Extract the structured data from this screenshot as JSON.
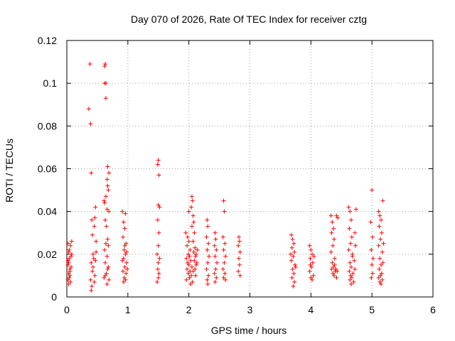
{
  "chart_data": {
    "type": "scatter",
    "title": "Day 070 of 2026, Rate Of TEC Index for receiver cztg",
    "xlabel": "GPS time / hours",
    "ylabel": "ROTI / TECUs",
    "xlim": [
      0,
      6
    ],
    "ylim": [
      0,
      0.12
    ],
    "xticks": [
      0,
      1,
      2,
      3,
      4,
      5,
      6
    ],
    "xtick_labels": [
      "0",
      "1",
      "2",
      "3",
      "4",
      "5",
      "6"
    ],
    "yticks": [
      0,
      0.02,
      0.04,
      0.06,
      0.08,
      0.1,
      0.12
    ],
    "ytick_labels": [
      "0",
      "0.02",
      "0.04",
      "0.06",
      "0.08",
      "0.1",
      "0.12"
    ],
    "grid": true,
    "marker": "+",
    "color": "#ff0000",
    "series": [
      {
        "name": "ROTI",
        "points": [
          [
            0.02,
            0.025
          ],
          [
            0.03,
            0.021
          ],
          [
            0.04,
            0.018
          ],
          [
            0.02,
            0.015
          ],
          [
            0.05,
            0.013
          ],
          [
            0.03,
            0.011
          ],
          [
            0.04,
            0.009
          ],
          [
            0.02,
            0.008
          ],
          [
            0.06,
            0.007
          ],
          [
            0.05,
            0.012
          ],
          [
            0.03,
            0.016
          ],
          [
            0.07,
            0.019
          ],
          [
            0.04,
            0.022
          ],
          [
            0.06,
            0.024
          ],
          [
            0.08,
            0.026
          ],
          [
            0.05,
            0.01
          ],
          [
            0.07,
            0.014
          ],
          [
            0.02,
            0.017
          ],
          [
            0.08,
            0.02
          ],
          [
            0.03,
            0.006
          ],
          [
            0.38,
            0.109
          ],
          [
            0.36,
            0.088
          ],
          [
            0.39,
            0.081
          ],
          [
            0.4,
            0.058
          ],
          [
            0.41,
            0.036
          ],
          [
            0.42,
            0.029
          ],
          [
            0.43,
            0.02
          ],
          [
            0.4,
            0.016
          ],
          [
            0.42,
            0.012
          ],
          [
            0.39,
            0.008
          ],
          [
            0.41,
            0.005
          ],
          [
            0.4,
            0.003
          ],
          [
            0.44,
            0.018
          ],
          [
            0.45,
            0.033
          ],
          [
            0.46,
            0.037
          ],
          [
            0.47,
            0.042
          ],
          [
            0.48,
            0.026
          ],
          [
            0.43,
            0.014
          ],
          [
            0.46,
            0.01
          ],
          [
            0.48,
            0.021
          ],
          [
            0.45,
            0.007
          ],
          [
            0.47,
            0.017
          ],
          [
            0.63,
            0.109
          ],
          [
            0.62,
            0.108
          ],
          [
            0.62,
            0.1
          ],
          [
            0.64,
            0.1
          ],
          [
            0.64,
            0.093
          ],
          [
            0.67,
            0.061
          ],
          [
            0.69,
            0.058
          ],
          [
            0.66,
            0.055
          ],
          [
            0.67,
            0.052
          ],
          [
            0.68,
            0.05
          ],
          [
            0.64,
            0.047
          ],
          [
            0.61,
            0.045
          ],
          [
            0.62,
            0.044
          ],
          [
            0.66,
            0.041
          ],
          [
            0.69,
            0.04
          ],
          [
            0.63,
            0.036
          ],
          [
            0.65,
            0.033
          ],
          [
            0.67,
            0.027
          ],
          [
            0.64,
            0.025
          ],
          [
            0.68,
            0.024
          ],
          [
            0.62,
            0.022
          ],
          [
            0.66,
            0.019
          ],
          [
            0.63,
            0.016
          ],
          [
            0.67,
            0.013
          ],
          [
            0.65,
            0.011
          ],
          [
            0.61,
            0.009
          ],
          [
            0.69,
            0.008
          ],
          [
            0.68,
            0.014
          ],
          [
            0.63,
            0.01
          ],
          [
            0.66,
            0.006
          ],
          [
            0.91,
            0.04
          ],
          [
            0.96,
            0.039
          ],
          [
            0.93,
            0.035
          ],
          [
            0.95,
            0.032
          ],
          [
            0.92,
            0.028
          ],
          [
            0.97,
            0.025
          ],
          [
            0.94,
            0.022
          ],
          [
            0.96,
            0.02
          ],
          [
            0.93,
            0.018
          ],
          [
            0.98,
            0.016
          ],
          [
            0.95,
            0.014
          ],
          [
            0.92,
            0.012
          ],
          [
            0.97,
            0.011
          ],
          [
            0.94,
            0.009
          ],
          [
            0.96,
            0.008
          ],
          [
            0.93,
            0.007
          ],
          [
            0.99,
            0.013
          ],
          [
            0.91,
            0.017
          ],
          [
            0.98,
            0.021
          ],
          [
            0.95,
            0.024
          ],
          [
            1.5,
            0.064
          ],
          [
            1.49,
            0.062
          ],
          [
            1.51,
            0.057
          ],
          [
            1.5,
            0.043
          ],
          [
            1.52,
            0.042
          ],
          [
            1.49,
            0.036
          ],
          [
            1.51,
            0.03
          ],
          [
            1.5,
            0.024
          ],
          [
            1.48,
            0.02
          ],
          [
            1.52,
            0.018
          ],
          [
            1.5,
            0.016
          ],
          [
            1.49,
            0.013
          ],
          [
            1.51,
            0.011
          ],
          [
            1.5,
            0.009
          ],
          [
            1.48,
            0.007
          ],
          [
            1.95,
            0.03
          ],
          [
            1.98,
            0.028
          ],
          [
            2.0,
            0.026
          ],
          [
            1.97,
            0.024
          ],
          [
            2.02,
            0.022
          ],
          [
            1.99,
            0.02
          ],
          [
            2.01,
            0.019
          ],
          [
            1.96,
            0.018
          ],
          [
            2.03,
            0.017
          ],
          [
            1.98,
            0.016
          ],
          [
            2.0,
            0.015
          ],
          [
            2.05,
            0.014
          ],
          [
            1.97,
            0.013
          ],
          [
            2.02,
            0.012
          ],
          [
            1.99,
            0.011
          ],
          [
            2.04,
            0.01
          ],
          [
            2.01,
            0.009
          ],
          [
            1.96,
            0.008
          ],
          [
            2.06,
            0.007
          ],
          [
            2.03,
            0.006
          ],
          [
            2.05,
            0.047
          ],
          [
            2.06,
            0.045
          ],
          [
            2.04,
            0.042
          ],
          [
            2.07,
            0.038
          ],
          [
            2.08,
            0.035
          ],
          [
            2.05,
            0.033
          ],
          [
            2.09,
            0.03
          ],
          [
            2.07,
            0.026
          ],
          [
            2.1,
            0.023
          ],
          [
            2.08,
            0.021
          ],
          [
            2.11,
            0.019
          ],
          [
            2.09,
            0.017
          ],
          [
            2.12,
            0.015
          ],
          [
            2.1,
            0.013
          ],
          [
            2.07,
            0.012
          ],
          [
            2.11,
            0.01
          ],
          [
            2.13,
            0.016
          ],
          [
            2.12,
            0.02
          ],
          [
            2.14,
            0.022
          ],
          [
            2.0,
            0.04
          ],
          [
            2.3,
            0.036
          ],
          [
            2.31,
            0.033
          ],
          [
            2.29,
            0.028
          ],
          [
            2.32,
            0.025
          ],
          [
            2.3,
            0.022
          ],
          [
            2.33,
            0.019
          ],
          [
            2.31,
            0.016
          ],
          [
            2.29,
            0.013
          ],
          [
            2.32,
            0.01
          ],
          [
            2.3,
            0.008
          ],
          [
            2.31,
            0.006
          ],
          [
            2.43,
            0.03
          ],
          [
            2.44,
            0.027
          ],
          [
            2.42,
            0.024
          ],
          [
            2.45,
            0.022
          ],
          [
            2.43,
            0.019
          ],
          [
            2.46,
            0.016
          ],
          [
            2.44,
            0.013
          ],
          [
            2.42,
            0.011
          ],
          [
            2.45,
            0.009
          ],
          [
            2.43,
            0.007
          ],
          [
            2.57,
            0.045
          ],
          [
            2.58,
            0.04
          ],
          [
            2.56,
            0.028
          ],
          [
            2.59,
            0.025
          ],
          [
            2.57,
            0.022
          ],
          [
            2.6,
            0.019
          ],
          [
            2.58,
            0.016
          ],
          [
            2.56,
            0.013
          ],
          [
            2.59,
            0.011
          ],
          [
            2.57,
            0.009
          ],
          [
            2.6,
            0.008
          ],
          [
            2.82,
            0.028
          ],
          [
            2.83,
            0.026
          ],
          [
            2.81,
            0.024
          ],
          [
            2.84,
            0.021
          ],
          [
            2.82,
            0.018
          ],
          [
            2.83,
            0.015
          ],
          [
            2.81,
            0.012
          ],
          [
            2.84,
            0.01
          ],
          [
            3.68,
            0.029
          ],
          [
            3.7,
            0.027
          ],
          [
            3.72,
            0.025
          ],
          [
            3.69,
            0.023
          ],
          [
            3.73,
            0.021
          ],
          [
            3.71,
            0.019
          ],
          [
            3.68,
            0.017
          ],
          [
            3.74,
            0.015
          ],
          [
            3.7,
            0.013
          ],
          [
            3.72,
            0.011
          ],
          [
            3.69,
            0.009
          ],
          [
            3.73,
            0.007
          ],
          [
            3.71,
            0.005
          ],
          [
            3.75,
            0.014
          ],
          [
            3.67,
            0.02
          ],
          [
            3.98,
            0.024
          ],
          [
            4.0,
            0.022
          ],
          [
            4.02,
            0.02
          ],
          [
            3.99,
            0.018
          ],
          [
            4.03,
            0.016
          ],
          [
            4.01,
            0.014
          ],
          [
            3.98,
            0.012
          ],
          [
            4.04,
            0.01
          ],
          [
            4.0,
            0.009
          ],
          [
            4.02,
            0.008
          ],
          [
            3.99,
            0.015
          ],
          [
            4.05,
            0.019
          ],
          [
            4.33,
            0.038
          ],
          [
            4.35,
            0.035
          ],
          [
            4.37,
            0.032
          ],
          [
            4.34,
            0.03
          ],
          [
            4.38,
            0.027
          ],
          [
            4.36,
            0.024
          ],
          [
            4.33,
            0.021
          ],
          [
            4.39,
            0.018
          ],
          [
            4.35,
            0.016
          ],
          [
            4.37,
            0.014
          ],
          [
            4.34,
            0.013
          ],
          [
            4.4,
            0.012
          ],
          [
            4.36,
            0.011
          ],
          [
            4.38,
            0.01
          ],
          [
            4.42,
            0.009
          ],
          [
            4.41,
            0.013
          ],
          [
            4.39,
            0.015
          ],
          [
            4.43,
            0.012
          ],
          [
            4.42,
            0.038
          ],
          [
            4.44,
            0.037
          ],
          [
            4.62,
            0.042
          ],
          [
            4.64,
            0.04
          ],
          [
            4.66,
            0.036
          ],
          [
            4.63,
            0.032
          ],
          [
            4.67,
            0.028
          ],
          [
            4.65,
            0.025
          ],
          [
            4.62,
            0.022
          ],
          [
            4.68,
            0.019
          ],
          [
            4.64,
            0.016
          ],
          [
            4.66,
            0.014
          ],
          [
            4.63,
            0.012
          ],
          [
            4.69,
            0.011
          ],
          [
            4.65,
            0.01
          ],
          [
            4.67,
            0.009
          ],
          [
            4.64,
            0.008
          ],
          [
            4.7,
            0.007
          ],
          [
            4.66,
            0.006
          ],
          [
            4.72,
            0.013
          ],
          [
            4.71,
            0.017
          ],
          [
            4.68,
            0.02
          ],
          [
            4.73,
            0.024
          ],
          [
            4.72,
            0.03
          ],
          [
            4.74,
            0.041
          ],
          [
            5.0,
            0.05
          ],
          [
            4.98,
            0.035
          ],
          [
            5.01,
            0.028
          ],
          [
            4.99,
            0.022
          ],
          [
            5.02,
            0.018
          ],
          [
            5.0,
            0.015
          ],
          [
            5.01,
            0.011
          ],
          [
            4.99,
            0.009
          ],
          [
            5.11,
            0.04
          ],
          [
            5.13,
            0.038
          ],
          [
            5.15,
            0.036
          ],
          [
            5.12,
            0.033
          ],
          [
            5.16,
            0.03
          ],
          [
            5.14,
            0.027
          ],
          [
            5.11,
            0.024
          ],
          [
            5.17,
            0.021
          ],
          [
            5.13,
            0.018
          ],
          [
            5.15,
            0.015
          ],
          [
            5.12,
            0.013
          ],
          [
            5.16,
            0.011
          ],
          [
            5.14,
            0.01
          ],
          [
            5.11,
            0.009
          ],
          [
            5.17,
            0.008
          ],
          [
            5.13,
            0.007
          ],
          [
            5.15,
            0.006
          ],
          [
            5.18,
            0.045
          ],
          [
            5.19,
            0.025
          ],
          [
            5.18,
            0.016
          ]
        ]
      }
    ]
  }
}
